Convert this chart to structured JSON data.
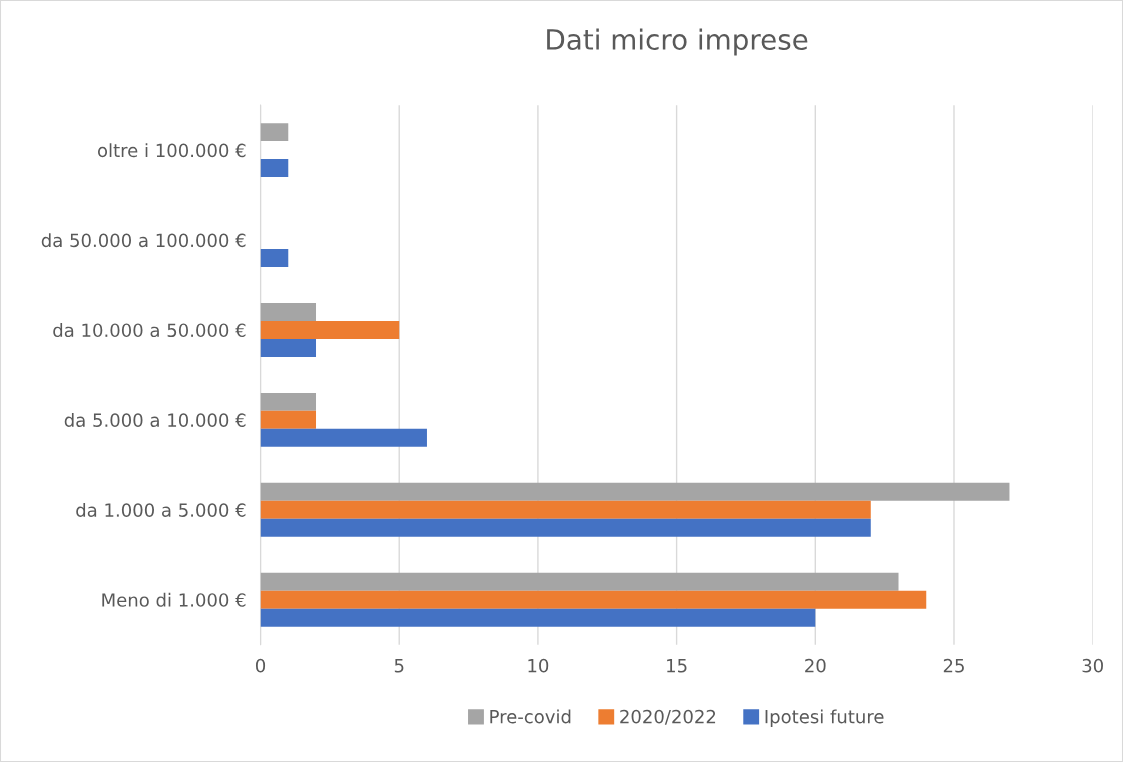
{
  "chart_data": {
    "type": "bar",
    "orientation": "horizontal",
    "title": "Dati micro imprese",
    "categories": [
      "oltre i 100.000 €",
      "da 50.000 a 100.000 €",
      "da 10.000 a 50.000 €",
      "da 5.000 a 10.000 €",
      "da 1.000 a 5.000 €",
      "Meno di 1.000 €"
    ],
    "series": [
      {
        "name": "Pre-covid",
        "color": "#a5a5a5",
        "values": [
          1,
          0,
          2,
          2,
          27,
          23
        ]
      },
      {
        "name": "2020/2022",
        "color": "#ed7d31",
        "values": [
          0,
          0,
          5,
          2,
          22,
          24
        ]
      },
      {
        "name": "Ipotesi future",
        "color": "#4472c4",
        "values": [
          1,
          1,
          2,
          6,
          22,
          20
        ]
      }
    ],
    "xlim": [
      0,
      30
    ],
    "xticks": [
      0,
      5,
      10,
      15,
      20,
      25,
      30
    ],
    "grid": "x",
    "legend": "bottom"
  }
}
